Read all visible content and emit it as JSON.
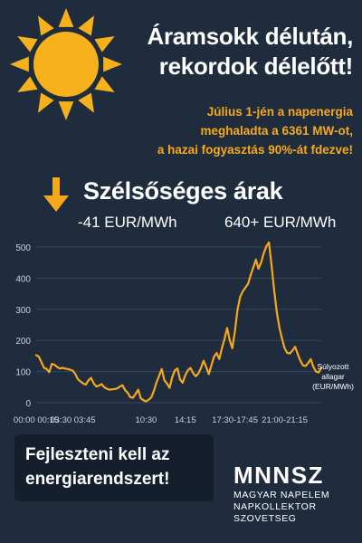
{
  "headline": {
    "line1": "Áramsokk délután,",
    "line2": "rekordok délelőtt!"
  },
  "subtext": {
    "line1": "Július 1-jén a napenergia",
    "line2": "meghaladta a 6361 MW-ot,",
    "line3": "a hazai fogyasztás 90%-át fdezve!"
  },
  "section": {
    "title": "Szélsőséges árak",
    "price_low": "-41 EUR/MWh",
    "price_high": "640+ EUR/MWh"
  },
  "callout": {
    "line1": "Fejleszteni kell az",
    "line2": "energiarendszert!"
  },
  "org": {
    "abbr": "MNNSZ",
    "line1": "MAGYAR NAPELEM",
    "line2": "NAPKOLLEKTOR",
    "line3": "SZOVETSEG"
  },
  "colors": {
    "background": "#1f2c3e",
    "accent": "#f6a81c",
    "sun": "#f7b21b",
    "line": "#f6a81c",
    "callout_bg": "#141e2c"
  },
  "icons": {
    "sun": "sun-icon",
    "arrow": "arrow-down-icon"
  },
  "chart_data": {
    "type": "line",
    "xlabel": "",
    "ylabel": "",
    "ylim": [
      0,
      500
    ],
    "yticks": [
      0,
      100,
      200,
      300,
      400,
      500
    ],
    "xticklabels": [
      "00:00 00:15",
      "03:30 03:45",
      "10:30",
      "14:15",
      "17:30-17:45",
      "21:00-21:15"
    ],
    "xtick_index": [
      0,
      14,
      42,
      57,
      76,
      95
    ],
    "annotation": {
      "line1": "Súlyozott",
      "line2": "allagar",
      "line3": "(EUR/MWh)"
    },
    "series": [
      {
        "values": [
          153,
          148,
          130,
          112,
          108,
          98,
          125,
          122,
          115,
          110,
          112,
          110,
          108,
          106,
          103,
          92,
          75,
          68,
          62,
          58,
          72,
          80,
          62,
          52,
          55,
          60,
          50,
          45,
          42,
          43,
          44,
          46,
          52,
          56,
          40,
          32,
          18,
          16,
          28,
          42,
          14,
          8,
          4,
          10,
          17,
          38,
          65,
          86,
          108,
          72,
          62,
          48,
          82,
          104,
          110,
          75,
          64,
          88,
          104,
          112,
          95,
          85,
          94,
          112,
          135,
          115,
          92,
          120,
          148,
          160,
          140,
          175,
          205,
          240,
          200,
          175,
          230,
          300,
          340,
          358,
          370,
          382,
          410,
          435,
          460,
          430,
          450,
          480,
          502,
          515,
          440,
          360,
          290,
          240,
          205,
          175,
          160,
          158,
          168,
          180,
          156,
          135,
          120,
          118,
          128,
          140,
          115,
          100,
          97,
          112
        ]
      }
    ]
  }
}
